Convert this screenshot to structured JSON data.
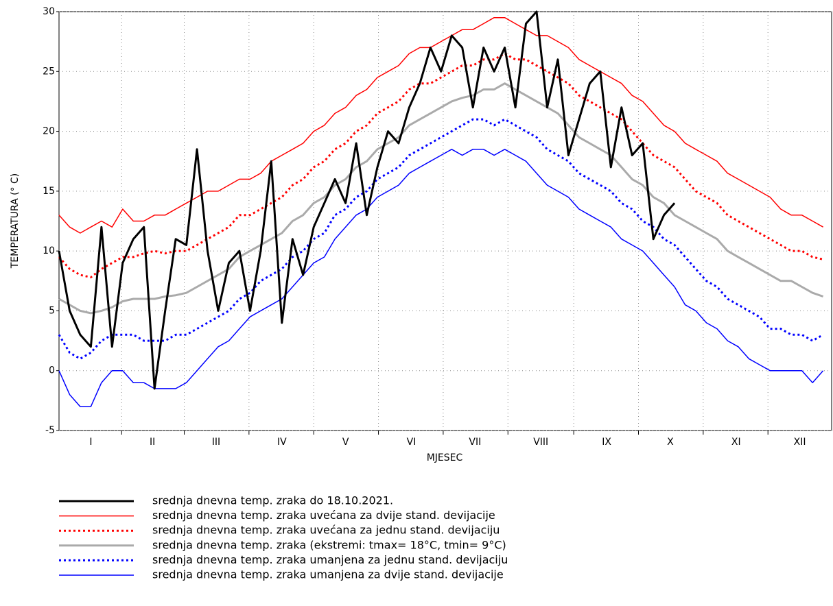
{
  "chart_data": {
    "type": "line",
    "x_label": "MJESEC",
    "y_label": "TEMPERATURA (° C)",
    "xlim": [
      1,
      365
    ],
    "ylim": [
      -5,
      30
    ],
    "yticks": [
      -5,
      0,
      5,
      10,
      15,
      20,
      25,
      30
    ],
    "xticks": [
      {
        "value": 16,
        "label": "I"
      },
      {
        "value": 45,
        "label": "II"
      },
      {
        "value": 75,
        "label": "III"
      },
      {
        "value": 106,
        "label": "IV"
      },
      {
        "value": 136,
        "label": "V"
      },
      {
        "value": 167,
        "label": "VI"
      },
      {
        "value": 197,
        "label": "VII"
      },
      {
        "value": 228,
        "label": "VIII"
      },
      {
        "value": 259,
        "label": "IX"
      },
      {
        "value": 289,
        "label": "X"
      },
      {
        "value": 320,
        "label": "XI"
      },
      {
        "value": 350,
        "label": "XII"
      }
    ],
    "grid": true,
    "x": [
      1,
      6,
      11,
      16,
      21,
      26,
      31,
      36,
      41,
      46,
      51,
      56,
      61,
      66,
      71,
      76,
      81,
      86,
      91,
      96,
      101,
      106,
      111,
      116,
      121,
      126,
      131,
      136,
      141,
      146,
      151,
      156,
      161,
      166,
      171,
      176,
      181,
      186,
      191,
      196,
      201,
      206,
      211,
      216,
      221,
      226,
      231,
      236,
      241,
      246,
      251,
      256,
      261,
      266,
      271,
      276,
      281,
      286,
      291,
      296,
      301,
      306,
      311,
      316,
      321,
      326,
      331,
      336,
      341,
      346,
      351,
      356,
      361
    ],
    "series": [
      {
        "name": "srednja dnevna temp. zraka do 18.10.2021.",
        "color": "#000000",
        "style": "solid",
        "linewidth": 3,
        "values": [
          10,
          5,
          3,
          2,
          12,
          2,
          9,
          11,
          12,
          -1.5,
          5,
          11,
          10.5,
          18.5,
          10,
          5,
          9,
          10,
          5,
          10,
          17.5,
          4,
          11,
          8,
          12,
          14,
          16,
          14,
          19,
          13,
          17,
          20,
          19,
          22,
          24,
          27,
          25,
          28,
          27,
          22,
          27,
          25,
          27,
          22,
          29,
          30,
          22,
          26,
          18,
          21,
          24,
          25,
          17,
          22,
          18,
          19,
          11,
          13,
          14,
          null,
          null,
          null,
          null,
          null,
          null,
          null,
          null,
          null,
          null,
          null,
          null,
          null,
          null
        ]
      },
      {
        "name": "srednja dnevna temp. zraka uvećana za dvije stand. devijacije",
        "color": "#ff0000",
        "style": "solid",
        "linewidth": 1.5,
        "values": [
          13,
          12,
          11.5,
          12,
          12.5,
          12,
          13.5,
          12.5,
          12.5,
          13,
          13,
          13.5,
          14,
          14.5,
          15,
          15,
          15.5,
          16,
          16,
          16.5,
          17.5,
          18,
          18.5,
          19,
          20,
          20.5,
          21.5,
          22,
          23,
          23.5,
          24.5,
          25,
          25.5,
          26.5,
          27,
          27,
          27.5,
          28,
          28.5,
          28.5,
          29,
          29.5,
          29.5,
          29,
          28.5,
          28,
          28,
          27.5,
          27,
          26,
          25.5,
          25,
          24.5,
          24,
          23,
          22.5,
          21.5,
          20.5,
          20,
          19,
          18.5,
          18,
          17.5,
          16.5,
          16,
          15.5,
          15,
          14.5,
          13.5,
          13,
          13,
          12.5,
          12
        ]
      },
      {
        "name": "srednja dnevna temp. zraka uvećana za jednu stand. devijaciju",
        "color": "#ff0000",
        "style": "dotted",
        "linewidth": 3,
        "values": [
          9.5,
          8.5,
          8,
          7.8,
          8.5,
          9,
          9.5,
          9.5,
          9.8,
          10,
          9.8,
          10,
          10,
          10.5,
          11,
          11.5,
          12,
          13,
          13,
          13.5,
          14,
          14.5,
          15.5,
          16,
          17,
          17.5,
          18.5,
          19,
          20,
          20.5,
          21.5,
          22,
          22.5,
          23.5,
          24,
          24,
          24.5,
          25,
          25.5,
          25.5,
          26,
          26,
          26.5,
          26,
          26,
          25.5,
          25,
          24.5,
          24,
          23,
          22.5,
          22,
          21.5,
          21,
          20,
          19,
          18,
          17.5,
          17,
          16,
          15,
          14.5,
          14,
          13,
          12.5,
          12,
          11.5,
          11,
          10.5,
          10,
          10,
          9.5,
          9.3
        ]
      },
      {
        "name": "srednja dnevna temp. zraka (ekstremi: tmax= 18°C, tmin= 9°C)",
        "color": "#aaaaaa",
        "style": "solid",
        "linewidth": 3,
        "values": [
          6,
          5.5,
          5,
          4.8,
          5,
          5.3,
          5.8,
          6,
          6,
          6,
          6.2,
          6.3,
          6.5,
          7,
          7.5,
          8,
          8.5,
          9.5,
          10,
          10.5,
          11,
          11.5,
          12.5,
          13,
          14,
          14.5,
          15.5,
          16,
          17,
          17.5,
          18.5,
          19,
          19.5,
          20.5,
          21,
          21.5,
          22,
          22.5,
          22.8,
          23,
          23.5,
          23.5,
          24,
          23.5,
          23,
          22.5,
          22,
          21.5,
          20.5,
          19.5,
          19,
          18.5,
          18,
          17,
          16,
          15.5,
          14.5,
          14,
          13,
          12.5,
          12,
          11.5,
          11,
          10,
          9.5,
          9,
          8.5,
          8,
          7.5,
          7.5,
          7,
          6.5,
          6.2
        ]
      },
      {
        "name": "srednja dnevna temp. zraka umanjena za jednu stand. devijaciju",
        "color": "#0000ff",
        "style": "dotted",
        "linewidth": 3,
        "values": [
          3,
          1.5,
          1,
          1.5,
          2.5,
          3,
          3,
          3,
          2.5,
          2.5,
          2.5,
          3,
          3,
          3.5,
          4,
          4.5,
          5,
          6,
          6.5,
          7.5,
          8,
          8.5,
          9.5,
          10,
          11,
          11.5,
          13,
          13.5,
          14.5,
          15,
          16,
          16.5,
          17,
          18,
          18.5,
          19,
          19.5,
          20,
          20.5,
          21,
          21,
          20.5,
          21,
          20.5,
          20,
          19.5,
          18.5,
          18,
          17.5,
          16.5,
          16,
          15.5,
          15,
          14,
          13.5,
          12.5,
          12,
          11,
          10.5,
          9.5,
          8.5,
          7.5,
          7,
          6,
          5.5,
          5,
          4.5,
          3.5,
          3.5,
          3,
          3,
          2.5,
          3
        ]
      },
      {
        "name": "srednja dnevna temp. zraka umanjena za dvije stand. devijacije",
        "color": "#0000ff",
        "style": "solid",
        "linewidth": 1.5,
        "values": [
          0,
          -2,
          -3,
          -3,
          -1,
          0,
          0,
          -1,
          -1,
          -1.5,
          -1.5,
          -1.5,
          -1,
          0,
          1,
          2,
          2.5,
          3.5,
          4.5,
          5,
          5.5,
          6,
          7,
          8,
          9,
          9.5,
          11,
          12,
          13,
          13.5,
          14.5,
          15,
          15.5,
          16.5,
          17,
          17.5,
          18,
          18.5,
          18,
          18.5,
          18.5,
          18,
          18.5,
          18,
          17.5,
          16.5,
          15.5,
          15,
          14.5,
          13.5,
          13,
          12.5,
          12,
          11,
          10.5,
          10,
          9,
          8,
          7,
          5.5,
          5,
          4,
          3.5,
          2.5,
          2,
          1,
          0.5,
          0,
          0,
          0,
          0,
          -1,
          0
        ]
      }
    ]
  }
}
